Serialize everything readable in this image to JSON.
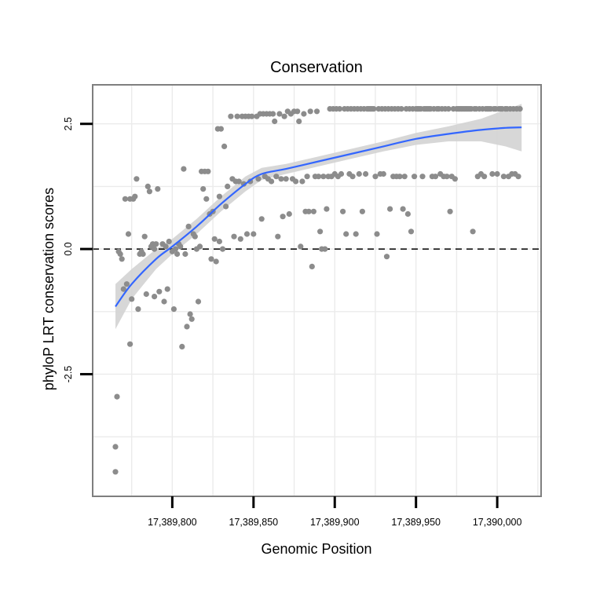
{
  "chart_data": {
    "type": "scatter",
    "title": "Conservation",
    "xlabel": "Genomic Position",
    "ylabel": "phyloP LRT conservation scores",
    "xlim": [
      17389751,
      17390027
    ],
    "ylim": [
      -4.94,
      3.28
    ],
    "x_ticks": [
      17389800,
      17389850,
      17389900,
      17389950,
      17390000
    ],
    "x_tick_labels": [
      "17,389,800",
      "17,389,850",
      "17,389,900",
      "17,389,950",
      "17,390,000"
    ],
    "y_ticks": [
      2.5,
      0.0,
      -2.5
    ],
    "y_tick_labels": [
      "2.5",
      "0.0",
      "-2.5"
    ],
    "hline": {
      "y": 0,
      "style": "dashed"
    },
    "grid": true,
    "colors": {
      "points": "#8c8c8c",
      "smooth": "#3366ff",
      "band": "#d3d3d3",
      "panel_border": "#7f7f7f",
      "grid": "#ebebeb"
    },
    "series": [
      {
        "name": "phyloP points",
        "type": "scatter",
        "points": [
          [
            17389765,
            -3.95
          ],
          [
            17389765,
            -4.45
          ],
          [
            17389766,
            -2.95
          ],
          [
            17389767,
            -0.05
          ],
          [
            17389768,
            -0.1
          ],
          [
            17389769,
            -0.2
          ],
          [
            17389770,
            -0.8
          ],
          [
            17389771,
            1.0
          ],
          [
            17389772,
            -0.7
          ],
          [
            17389773,
            0.3
          ],
          [
            17389774,
            -1.9
          ],
          [
            17389774,
            1.0
          ],
          [
            17389775,
            -1.0
          ],
          [
            17389776,
            1.0
          ],
          [
            17389777,
            1.05
          ],
          [
            17389778,
            1.4
          ],
          [
            17389779,
            -1.2
          ],
          [
            17389780,
            -0.1
          ],
          [
            17389781,
            -0.05
          ],
          [
            17389782,
            -0.1
          ],
          [
            17389783,
            0.25
          ],
          [
            17389784,
            -0.9
          ],
          [
            17389785,
            1.25
          ],
          [
            17389786,
            1.15
          ],
          [
            17389787,
            0.05
          ],
          [
            17389788,
            0.1
          ],
          [
            17389789,
            0.0
          ],
          [
            17389789,
            -0.95
          ],
          [
            17389790,
            0.1
          ],
          [
            17389791,
            1.2
          ],
          [
            17389792,
            -0.85
          ],
          [
            17389794,
            0.1
          ],
          [
            17389795,
            -1.05
          ],
          [
            17389796,
            0.05
          ],
          [
            17389797,
            -0.8
          ],
          [
            17389798,
            0.15
          ],
          [
            17389800,
            -0.05
          ],
          [
            17389801,
            -1.2
          ],
          [
            17389802,
            0.0
          ],
          [
            17389803,
            -0.1
          ],
          [
            17389804,
            0.1
          ],
          [
            17389805,
            0.05
          ],
          [
            17389806,
            -1.95
          ],
          [
            17389807,
            1.6
          ],
          [
            17389808,
            -0.1
          ],
          [
            17389809,
            -1.55
          ],
          [
            17389810,
            0.45
          ],
          [
            17389811,
            -1.3
          ],
          [
            17389812,
            -1.4
          ],
          [
            17389813,
            0.3
          ],
          [
            17389814,
            0.25
          ],
          [
            17389815,
            0.0
          ],
          [
            17389816,
            -1.05
          ],
          [
            17389817,
            0.05
          ],
          [
            17389818,
            1.55
          ],
          [
            17389819,
            1.2
          ],
          [
            17389820,
            1.55
          ],
          [
            17389821,
            1.0
          ],
          [
            17389822,
            1.55
          ],
          [
            17389823,
            0.7
          ],
          [
            17389824,
            -0.2
          ],
          [
            17389825,
            0.75
          ],
          [
            17389826,
            0.2
          ],
          [
            17389827,
            -0.25
          ],
          [
            17389828,
            2.4
          ],
          [
            17389829,
            1.05
          ],
          [
            17389829,
            0.15
          ],
          [
            17389830,
            2.4
          ],
          [
            17389831,
            0.0
          ],
          [
            17389832,
            2.05
          ],
          [
            17389833,
            0.85
          ],
          [
            17389834,
            1.25
          ],
          [
            17389836,
            2.65
          ],
          [
            17389837,
            1.4
          ],
          [
            17389838,
            0.25
          ],
          [
            17389839,
            1.35
          ],
          [
            17389840,
            2.65
          ],
          [
            17389841,
            1.35
          ],
          [
            17389842,
            0.2
          ],
          [
            17389843,
            2.65
          ],
          [
            17389844,
            1.3
          ],
          [
            17389845,
            2.65
          ],
          [
            17389846,
            0.3
          ],
          [
            17389847,
            2.65
          ],
          [
            17389848,
            1.35
          ],
          [
            17389849,
            2.65
          ],
          [
            17389850,
            0.3
          ],
          [
            17389852,
            2.65
          ],
          [
            17389853,
            1.4
          ],
          [
            17389854,
            2.7
          ],
          [
            17389855,
            0.6
          ],
          [
            17389856,
            2.7
          ],
          [
            17389857,
            1.45
          ],
          [
            17389858,
            2.7
          ],
          [
            17389859,
            1.4
          ],
          [
            17389860,
            2.7
          ],
          [
            17389861,
            1.35
          ],
          [
            17389862,
            2.7
          ],
          [
            17389863,
            2.55
          ],
          [
            17389864,
            1.45
          ],
          [
            17389865,
            0.25
          ],
          [
            17389866,
            2.7
          ],
          [
            17389867,
            1.4
          ],
          [
            17389868,
            0.65
          ],
          [
            17389869,
            2.65
          ],
          [
            17389870,
            1.4
          ],
          [
            17389871,
            2.75
          ],
          [
            17389872,
            0.7
          ],
          [
            17389873,
            2.7
          ],
          [
            17389874,
            1.4
          ],
          [
            17389875,
            2.75
          ],
          [
            17389876,
            1.35
          ],
          [
            17389877,
            2.75
          ],
          [
            17389878,
            2.55
          ],
          [
            17389879,
            0.05
          ],
          [
            17389880,
            1.35
          ],
          [
            17389881,
            2.7
          ],
          [
            17389882,
            0.75
          ],
          [
            17389883,
            1.45
          ],
          [
            17389884,
            0.75
          ],
          [
            17389885,
            2.75
          ],
          [
            17389886,
            -0.35
          ],
          [
            17389887,
            0.75
          ],
          [
            17389888,
            1.45
          ],
          [
            17389889,
            2.75
          ],
          [
            17389890,
            1.45
          ],
          [
            17389891,
            0.35
          ],
          [
            17389892,
            0.0
          ],
          [
            17389893,
            1.45
          ],
          [
            17389894,
            0.0
          ],
          [
            17389895,
            0.8
          ],
          [
            17389896,
            1.45
          ],
          [
            17389897,
            2.8
          ],
          [
            17389898,
            1.45
          ],
          [
            17389899,
            2.8
          ],
          [
            17389900,
            1.5
          ],
          [
            17389901,
            2.8
          ],
          [
            17389902,
            1.45
          ],
          [
            17389903,
            2.8
          ],
          [
            17389904,
            1.5
          ],
          [
            17389905,
            0.75
          ],
          [
            17389906,
            2.8
          ],
          [
            17389907,
            0.3
          ],
          [
            17389908,
            2.8
          ],
          [
            17389909,
            1.5
          ],
          [
            17389910,
            2.8
          ],
          [
            17389911,
            1.45
          ],
          [
            17389912,
            2.8
          ],
          [
            17389913,
            0.3
          ],
          [
            17389914,
            2.8
          ],
          [
            17389915,
            1.5
          ],
          [
            17389916,
            2.8
          ],
          [
            17389917,
            0.75
          ],
          [
            17389918,
            2.8
          ],
          [
            17389919,
            1.5
          ],
          [
            17389920,
            2.8
          ],
          [
            17389921,
            2.8
          ],
          [
            17389922,
            2.8
          ],
          [
            17389923,
            2.8
          ],
          [
            17389924,
            2.8
          ],
          [
            17389925,
            1.45
          ],
          [
            17389926,
            0.3
          ],
          [
            17389927,
            2.8
          ],
          [
            17389928,
            1.5
          ],
          [
            17389929,
            2.8
          ],
          [
            17389930,
            1.5
          ],
          [
            17389931,
            2.8
          ],
          [
            17389932,
            -0.15
          ],
          [
            17389933,
            2.8
          ],
          [
            17389934,
            0.8
          ],
          [
            17389935,
            2.8
          ],
          [
            17389936,
            1.45
          ],
          [
            17389937,
            2.8
          ],
          [
            17389938,
            1.45
          ],
          [
            17389939,
            2.8
          ],
          [
            17389940,
            1.45
          ],
          [
            17389941,
            2.8
          ],
          [
            17389942,
            0.8
          ],
          [
            17389943,
            1.45
          ],
          [
            17389944,
            2.8
          ],
          [
            17389945,
            0.7
          ],
          [
            17389946,
            2.8
          ],
          [
            17389947,
            0.35
          ],
          [
            17389948,
            2.8
          ],
          [
            17389949,
            1.45
          ],
          [
            17389950,
            2.8
          ],
          [
            17389951,
            2.8
          ],
          [
            17389952,
            2.8
          ],
          [
            17389953,
            2.8
          ],
          [
            17389954,
            1.45
          ],
          [
            17389955,
            2.8
          ],
          [
            17389956,
            2.8
          ],
          [
            17389957,
            2.8
          ],
          [
            17389958,
            2.8
          ],
          [
            17389959,
            2.8
          ],
          [
            17389960,
            1.45
          ],
          [
            17389961,
            2.8
          ],
          [
            17389962,
            1.45
          ],
          [
            17389963,
            2.8
          ],
          [
            17389964,
            2.8
          ],
          [
            17389965,
            1.5
          ],
          [
            17389966,
            2.8
          ],
          [
            17389967,
            1.45
          ],
          [
            17389968,
            2.8
          ],
          [
            17389969,
            1.45
          ],
          [
            17389970,
            2.8
          ],
          [
            17389971,
            0.75
          ],
          [
            17389972,
            1.45
          ],
          [
            17389973,
            2.8
          ],
          [
            17389974,
            1.4
          ],
          [
            17389975,
            2.8
          ],
          [
            17389976,
            2.8
          ],
          [
            17389977,
            2.8
          ],
          [
            17389978,
            2.8
          ],
          [
            17389979,
            2.8
          ],
          [
            17389980,
            2.8
          ],
          [
            17389981,
            2.8
          ],
          [
            17389982,
            2.8
          ],
          [
            17389983,
            2.8
          ],
          [
            17389984,
            2.8
          ],
          [
            17389985,
            0.35
          ],
          [
            17389986,
            2.8
          ],
          [
            17389987,
            2.8
          ],
          [
            17389988,
            1.45
          ],
          [
            17389989,
            2.8
          ],
          [
            17389990,
            1.5
          ],
          [
            17389991,
            2.8
          ],
          [
            17389992,
            1.45
          ],
          [
            17389993,
            2.8
          ],
          [
            17389994,
            2.8
          ],
          [
            17389995,
            2.8
          ],
          [
            17389996,
            2.8
          ],
          [
            17389997,
            1.5
          ],
          [
            17389998,
            2.8
          ],
          [
            17389999,
            2.8
          ],
          [
            17390000,
            1.5
          ],
          [
            17390001,
            2.8
          ],
          [
            17390002,
            2.8
          ],
          [
            17390003,
            2.8
          ],
          [
            17390004,
            1.45
          ],
          [
            17390005,
            2.8
          ],
          [
            17390006,
            2.8
          ],
          [
            17390007,
            1.45
          ],
          [
            17390008,
            2.8
          ],
          [
            17390009,
            1.5
          ],
          [
            17390010,
            2.8
          ],
          [
            17390011,
            1.5
          ],
          [
            17390012,
            2.8
          ],
          [
            17390013,
            1.45
          ],
          [
            17390014,
            2.8
          ]
        ]
      },
      {
        "name": "smooth fit",
        "type": "line",
        "x": [
          17389765,
          17389775,
          17389790,
          17389800,
          17389815,
          17389830,
          17389845,
          17389855,
          17389870,
          17389890,
          17389910,
          17389930,
          17389950,
          17389970,
          17389990,
          17390005,
          17390015
        ],
        "y": [
          -1.15,
          -0.7,
          -0.2,
          0.05,
          0.45,
          0.9,
          1.3,
          1.5,
          1.6,
          1.75,
          1.9,
          2.05,
          2.2,
          2.3,
          2.38,
          2.42,
          2.43
        ],
        "band_low": [
          -1.6,
          -1.0,
          -0.4,
          -0.1,
          0.3,
          0.75,
          1.15,
          1.38,
          1.5,
          1.65,
          1.8,
          1.95,
          2.08,
          2.15,
          2.15,
          2.05,
          1.95
        ],
        "band_high": [
          -0.7,
          -0.4,
          0.0,
          0.2,
          0.6,
          1.05,
          1.45,
          1.62,
          1.7,
          1.85,
          2.0,
          2.15,
          2.32,
          2.45,
          2.6,
          2.78,
          2.9
        ]
      }
    ]
  }
}
